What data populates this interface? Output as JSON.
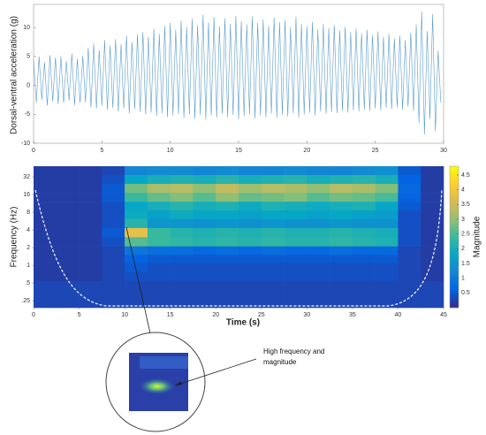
{
  "chart_data": [
    {
      "type": "line",
      "ylabel": "Dorsal-ventral acceleration (g)",
      "xlim": [
        0,
        30
      ],
      "xticks": [
        0,
        5,
        10,
        15,
        20,
        25,
        30
      ],
      "ylim": [
        -10,
        14
      ],
      "yticks": [
        -10,
        -5,
        0,
        5,
        10
      ],
      "series": [
        {
          "color": "#5a9ccc",
          "x": [
            0,
            0.2,
            0.4,
            0.6,
            0.8,
            1,
            1.2,
            1.4,
            1.6,
            1.8,
            2,
            2.2,
            2.4,
            2.6,
            2.8,
            3,
            3.2,
            3.4,
            3.6,
            3.8,
            4,
            4.2,
            4.4,
            4.6,
            4.8,
            5,
            5.2,
            5.4,
            5.6,
            5.8,
            6,
            6.2,
            6.4,
            6.6,
            6.8,
            7,
            7.2,
            7.4,
            7.6,
            7.8,
            8,
            8.2,
            8.4,
            8.6,
            8.8,
            9,
            9.2,
            9.4,
            9.6,
            9.8,
            10,
            10.2,
            10.4,
            10.6,
            10.8,
            11,
            11.2,
            11.4,
            11.6,
            11.8,
            12,
            12.2,
            12.4,
            12.6,
            12.8,
            13,
            13.2,
            13.4,
            13.6,
            13.8,
            14,
            14.2,
            14.4,
            14.6,
            14.8,
            15,
            15.2,
            15.4,
            15.6,
            15.8,
            16,
            16.2,
            16.4,
            16.6,
            16.8,
            17,
            17.2,
            17.4,
            17.6,
            17.8,
            18,
            18.2,
            18.4,
            18.6,
            18.8,
            19,
            19.2,
            19.4,
            19.6,
            19.8,
            20,
            20.2,
            20.4,
            20.6,
            20.8,
            21,
            21.2,
            21.4,
            21.6,
            21.8,
            22,
            22.2,
            22.4,
            22.6,
            22.8,
            23,
            23.2,
            23.4,
            23.6,
            23.8,
            24,
            24.2,
            24.4,
            24.6,
            24.8,
            25,
            25.2,
            25.4,
            25.6,
            25.8,
            26,
            26.2,
            26.4,
            26.6,
            26.8,
            27,
            27.2,
            27.4,
            27.6,
            27.8,
            28,
            28.2,
            28.4,
            28.6,
            28.8,
            29,
            29.2,
            29.4,
            29.6,
            29.8
          ],
          "values": [
            4.5,
            -3,
            5,
            -2.5,
            4,
            -3.5,
            5.2,
            -2.8,
            4.8,
            -3.2,
            5,
            -3,
            4.2,
            -2.6,
            5.5,
            -3.4,
            4.6,
            -3,
            5.1,
            -2.9,
            6.5,
            -3.8,
            7.2,
            -4,
            6.1,
            -3.5,
            7.8,
            -4.2,
            6.9,
            -3.9,
            8,
            -4.5,
            7.1,
            -4,
            8.6,
            -4.8,
            7.5,
            -4.1,
            8.8,
            -4.6,
            9.2,
            -5,
            8.4,
            -4.7,
            9.8,
            -5.3,
            8.9,
            -4.8,
            10.3,
            -5.5,
            10.8,
            -5.2,
            9.6,
            -4.9,
            11.2,
            -5.6,
            10.1,
            -5,
            11.5,
            -5.8,
            10.4,
            -5.1,
            12.2,
            -5.9,
            10.9,
            -5.2,
            11.8,
            -5.6,
            10.2,
            -4.9,
            11.6,
            -5.5,
            10.7,
            -5.1,
            12,
            -5.8,
            11.1,
            -5.3,
            10.5,
            -5,
            11.9,
            -5.7,
            10.8,
            -5.2,
            11.4,
            -5.5,
            10.3,
            -4.9,
            11.7,
            -5.6,
            10.9,
            -5.1,
            11.3,
            -5.4,
            10.1,
            -4.8,
            11.8,
            -5.6,
            10.6,
            -5,
            10.2,
            -4.7,
            11,
            -5.2,
            9.7,
            -4.5,
            10.6,
            -4.9,
            9.9,
            -4.6,
            10.4,
            -4.8,
            9.5,
            -4.4,
            10.1,
            -4.7,
            9.2,
            -4.3,
            9.8,
            -4.5,
            9,
            -4.2,
            9.6,
            -4.4,
            8.7,
            -4,
            9.3,
            -4.3,
            8.4,
            -3.9,
            8.9,
            -4.1,
            8.1,
            -3.8,
            8.6,
            -4.2,
            7.8,
            -3.7,
            9.1,
            -4.4,
            10.5,
            -6.5,
            12.8,
            -8.5,
            9.4,
            -5.8,
            12.3,
            -7.9,
            6,
            -3
          ]
        }
      ]
    },
    {
      "type": "heatmap",
      "xlabel": "Time (s)",
      "ylabel": "Frequency (Hz)",
      "colorbar_label": "Magnitude",
      "annotation": [
        "High frequency and",
        "magnitude"
      ],
      "xlim": [
        0,
        45
      ],
      "xticks": [
        0,
        5,
        10,
        15,
        20,
        25,
        30,
        35,
        40,
        45
      ],
      "yscale": "log",
      "ylim": [
        0.19,
        48.5
      ],
      "yticks": [
        32,
        16,
        8,
        4,
        2,
        1,
        {
          "value": 0.5,
          "label": ".5"
        },
        {
          "value": 0.25,
          "label": ".25"
        }
      ],
      "x_edges": [
        0,
        2.5,
        5,
        7.5,
        10,
        12.5,
        15,
        17.5,
        20,
        22.5,
        25,
        27.5,
        30,
        32.5,
        35,
        37.5,
        40,
        42.5,
        45
      ],
      "y_edges": [
        48.5,
        34.3,
        24.3,
        17.1,
        12.1,
        8.6,
        6.1,
        4.3,
        3,
        2.1,
        1.5,
        1.1,
        0.76,
        0.54,
        0.38,
        0.27,
        0.19
      ],
      "clim": [
        0,
        4.8
      ],
      "cticks": [
        0.5,
        1,
        1.5,
        2,
        2.5,
        3,
        3.5,
        4,
        4.5
      ],
      "colormap": [
        "#352a87",
        "#0363e1",
        "#1485d4",
        "#06a7c6",
        "#38b99e",
        "#92bf73",
        "#d9ba56",
        "#fcce2e",
        "#f9fb0e"
      ],
      "z": [
        [
          0.2,
          0.2,
          0.2,
          0.3,
          1.2,
          1.3,
          1.3,
          1.2,
          1.3,
          1.2,
          1.2,
          1.3,
          1.2,
          1.2,
          1.3,
          1.4,
          0.5,
          0.2
        ],
        [
          0.2,
          0.2,
          0.2,
          0.4,
          1.8,
          2,
          2.1,
          2,
          2.2,
          2,
          2.1,
          2.2,
          2,
          2.1,
          2.2,
          2,
          0.6,
          0.2
        ],
        [
          0.2,
          0.2,
          0.2,
          0.5,
          2.8,
          3.2,
          3.3,
          3,
          3.4,
          3.1,
          3.3,
          3.2,
          3,
          3.3,
          3.2,
          2.9,
          0.7,
          0.2
        ],
        [
          0.2,
          0.2,
          0.2,
          0.5,
          2.4,
          2.7,
          2.9,
          2.6,
          3,
          2.7,
          2.8,
          2.9,
          2.6,
          2.8,
          2.7,
          2.5,
          0.6,
          0.2
        ],
        [
          0.2,
          0.2,
          0.2,
          0.4,
          1.8,
          2,
          2.2,
          2,
          2.1,
          1.9,
          2.1,
          2,
          1.9,
          2,
          2.1,
          1.8,
          0.5,
          0.2
        ],
        [
          0.2,
          0.2,
          0.2,
          0.4,
          1.9,
          1.7,
          1.9,
          1.8,
          1.8,
          1.7,
          1.8,
          1.8,
          1.7,
          1.8,
          1.7,
          1.6,
          0.4,
          0.2
        ],
        [
          0.2,
          0.2,
          0.2,
          0.4,
          2.2,
          1.5,
          1.5,
          1.4,
          1.5,
          1.4,
          1.5,
          1.4,
          1.4,
          1.5,
          1.4,
          1.4,
          0.4,
          0.2
        ],
        [
          0.2,
          0.2,
          0.2,
          0.5,
          3.8,
          2.4,
          2.2,
          2.1,
          2.2,
          2.1,
          2.2,
          2.1,
          2.1,
          2.2,
          2.1,
          2,
          0.4,
          0.2
        ],
        [
          0.2,
          0.2,
          0.2,
          0.4,
          2.6,
          2.4,
          2.3,
          2.2,
          2.3,
          2.2,
          2.3,
          2.2,
          2.2,
          2.3,
          2.2,
          2.1,
          0.4,
          0.2
        ],
        [
          0.2,
          0.2,
          0.2,
          0.3,
          0.9,
          0.8,
          0.8,
          0.7,
          0.8,
          0.7,
          0.8,
          0.7,
          0.7,
          0.8,
          0.7,
          0.7,
          0.3,
          0.2
        ],
        [
          0.2,
          0.2,
          0.2,
          0.3,
          0.6,
          0.5,
          0.5,
          0.5,
          0.5,
          0.5,
          0.5,
          0.5,
          0.5,
          0.5,
          0.5,
          0.5,
          0.3,
          0.2
        ],
        [
          0.2,
          0.2,
          0.2,
          0.3,
          0.5,
          0.4,
          0.4,
          0.4,
          0.4,
          0.4,
          0.4,
          0.4,
          0.4,
          0.4,
          0.4,
          0.4,
          0.3,
          0.2
        ],
        [
          0.2,
          0.2,
          0.2,
          0.3,
          0.4,
          0.4,
          0.4,
          0.4,
          0.4,
          0.4,
          0.4,
          0.4,
          0.4,
          0.4,
          0.4,
          0.4,
          0.3,
          0.2
        ],
        [
          0.3,
          0.3,
          0.3,
          0.3,
          0.3,
          0.3,
          0.3,
          0.3,
          0.3,
          0.3,
          0.3,
          0.3,
          0.3,
          0.3,
          0.3,
          0.3,
          0.3,
          0.3
        ],
        [
          0.3,
          0.3,
          0.3,
          0.3,
          0.3,
          0.3,
          0.3,
          0.3,
          0.3,
          0.3,
          0.3,
          0.3,
          0.3,
          0.3,
          0.3,
          0.3,
          0.3,
          0.3
        ],
        [
          0.3,
          0.3,
          0.3,
          0.3,
          0.3,
          0.3,
          0.3,
          0.3,
          0.3,
          0.3,
          0.3,
          0.3,
          0.3,
          0.3,
          0.3,
          0.3,
          0.3,
          0.3
        ]
      ]
    }
  ]
}
